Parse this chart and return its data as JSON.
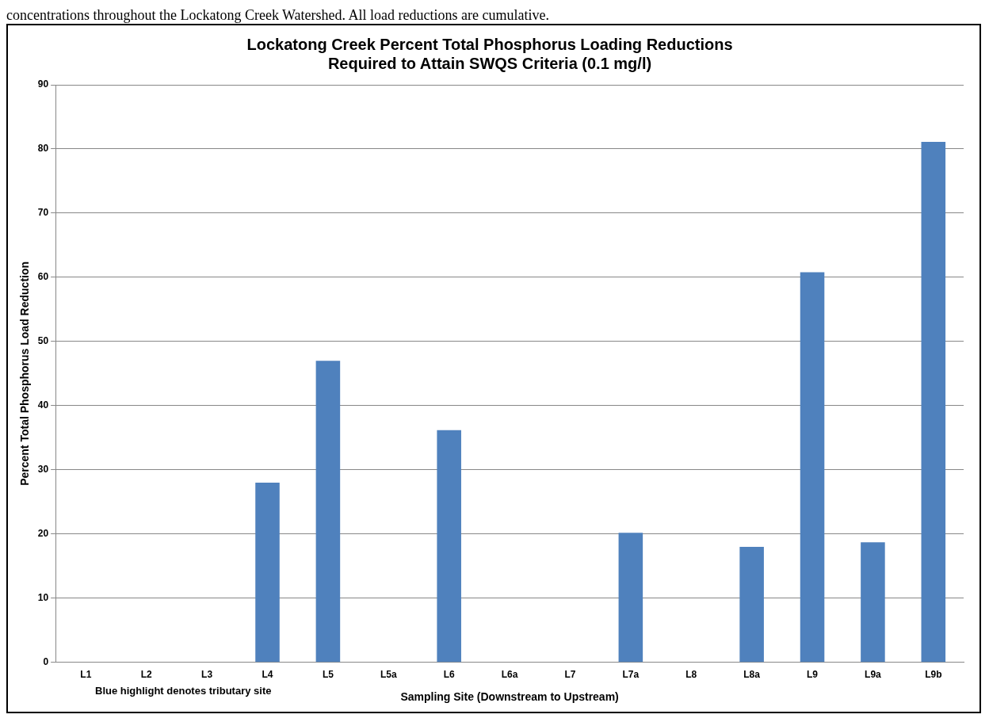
{
  "chart_data": {
    "type": "bar",
    "title": [
      "Lockatong Creek Percent Total Phosphorus Loading Reductions",
      "Required to Attain SWQS Criteria (0.1 mg/l)"
    ],
    "xlabel": "Sampling Site (Downstream to Upstream)",
    "ylabel": "Percent Total Phosphorus Load Reduction",
    "categories": [
      "L1",
      "L2",
      "L3",
      "L4",
      "L5",
      "L5a",
      "L6",
      "L6a",
      "L7",
      "L7a",
      "L8",
      "L8a",
      "L9",
      "L9a",
      "L9b"
    ],
    "values": [
      0,
      0,
      0,
      28,
      47,
      0,
      36.2,
      0,
      0,
      20.2,
      0,
      18,
      60.8,
      18.7,
      81.1
    ],
    "color": "#4f81bd",
    "ylim": [
      0,
      90
    ],
    "yticks": [
      0,
      10,
      20,
      30,
      40,
      50,
      60,
      70,
      80,
      90
    ],
    "grid": "y",
    "legend": false,
    "annotations": [
      "concentrations throughout the Lockatong Creek Watershed. All load reductions are cumulative.",
      "Blue highlight denotes tributary site"
    ]
  }
}
